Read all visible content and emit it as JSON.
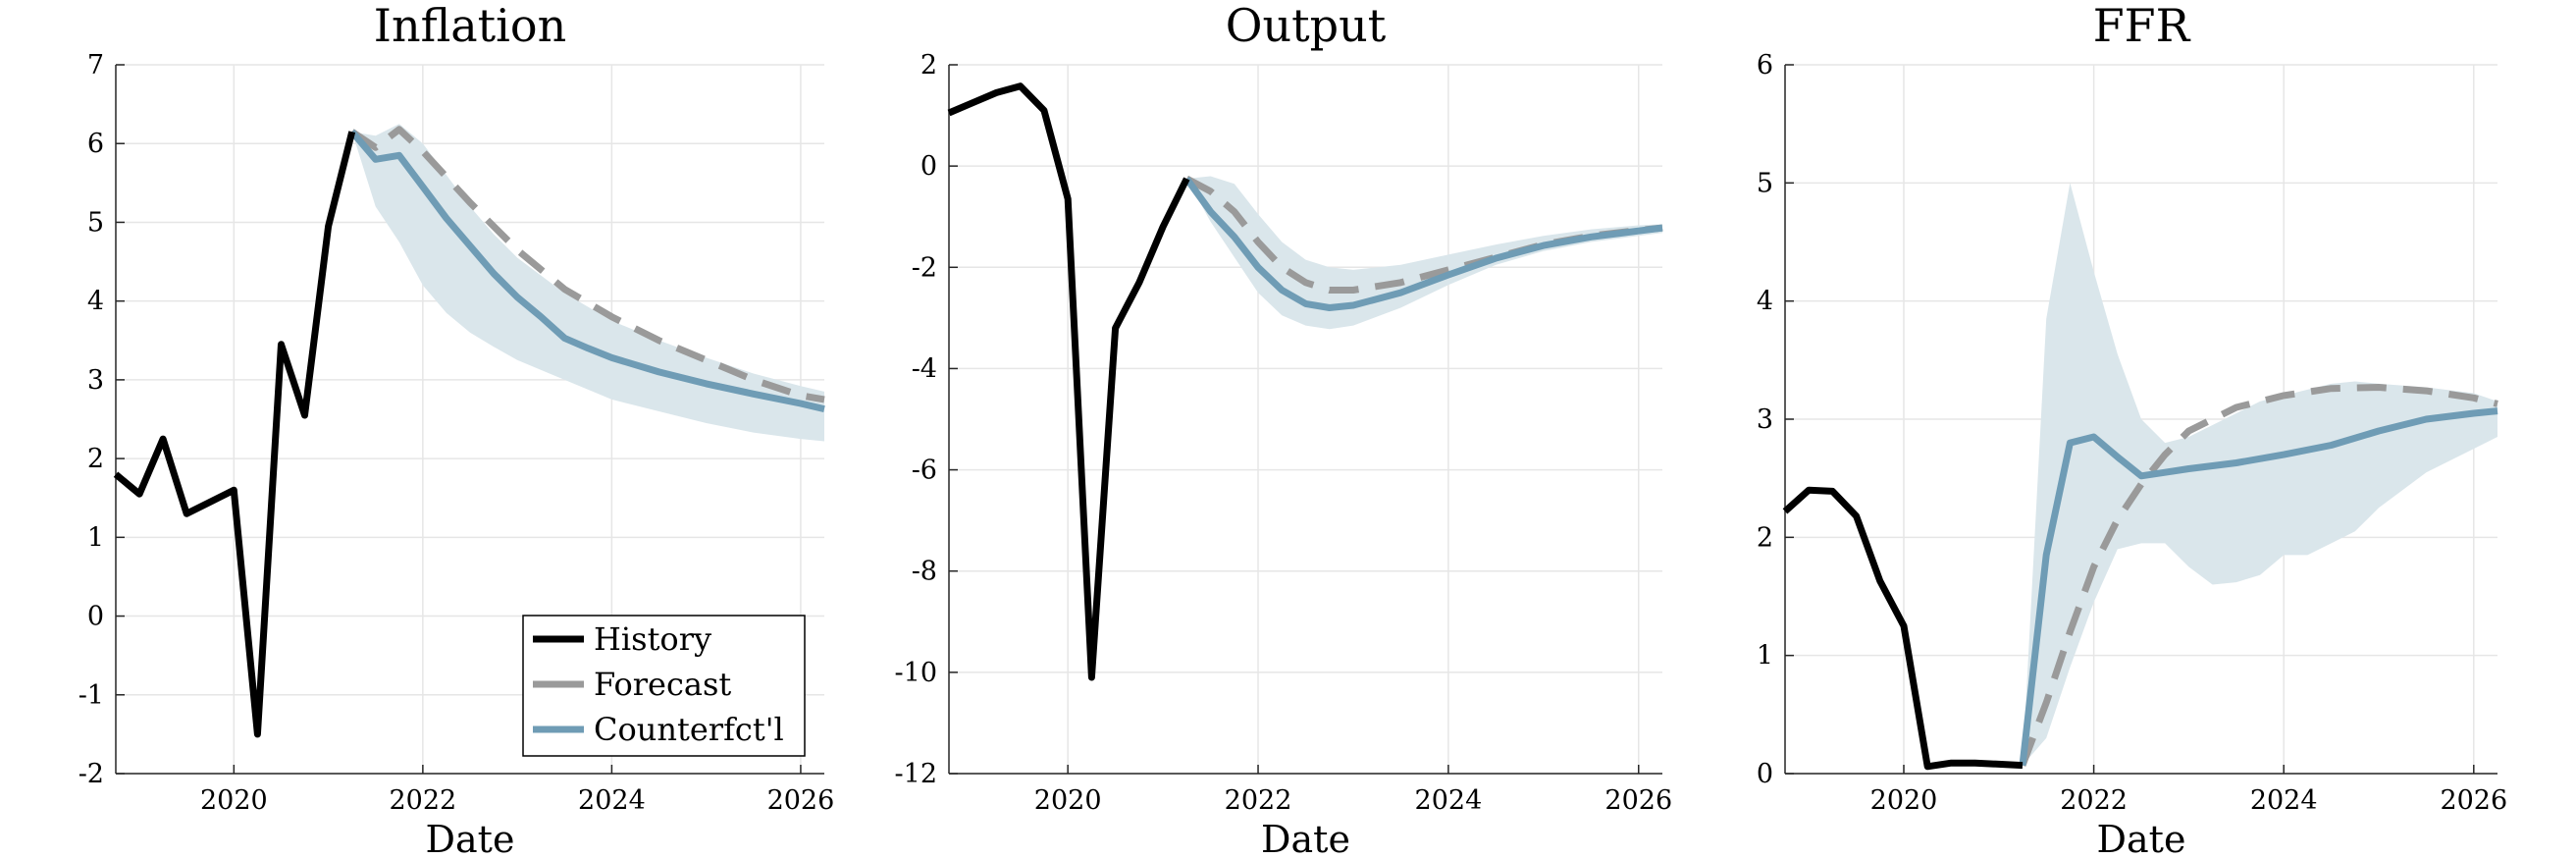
{
  "figure": {
    "series_styles": [
      {
        "key": "history",
        "color": "#000000",
        "dash": "solid"
      },
      {
        "key": "forecast",
        "color": "#9a9a9a",
        "dash": "dashed"
      },
      {
        "key": "counterfactual",
        "color": "#6f9cb5",
        "dash": "solid"
      }
    ],
    "band_color": "#dae6eb",
    "grid": true,
    "legend": {
      "panel": "Inflation",
      "placement": "bottom-right",
      "entries": [
        {
          "key": "history",
          "label": "History"
        },
        {
          "key": "forecast",
          "label": "Forecast"
        },
        {
          "key": "counterfactual",
          "label": "Counterfct'l"
        }
      ]
    }
  },
  "chart_data": [
    {
      "type": "line",
      "title": "Inflation",
      "xlabel": "Date",
      "ylabel": "",
      "xlim": [
        2018.75,
        2026.25
      ],
      "ylim": [
        -2,
        7
      ],
      "xticks": [
        2020,
        2022,
        2024,
        2026
      ],
      "yticks": [
        -2,
        -1,
        0,
        1,
        2,
        3,
        4,
        5,
        6,
        7
      ],
      "series": [
        {
          "key": "history",
          "name": "History",
          "x": [
            2018.75,
            2019.0,
            2019.25,
            2019.5,
            2019.75,
            2020.0,
            2020.25,
            2020.5,
            2020.75,
            2021.0,
            2021.25
          ],
          "y": [
            1.8,
            1.55,
            2.25,
            1.3,
            1.45,
            1.6,
            -1.5,
            3.45,
            2.55,
            4.95,
            6.15
          ]
        },
        {
          "key": "forecast",
          "name": "Forecast",
          "x": [
            2021.25,
            2021.5,
            2021.75,
            2022.0,
            2022.5,
            2023.0,
            2023.5,
            2024.0,
            2024.5,
            2025.0,
            2025.5,
            2026.0,
            2026.25
          ],
          "y": [
            6.15,
            5.95,
            6.18,
            5.9,
            5.25,
            4.65,
            4.15,
            3.8,
            3.5,
            3.25,
            3.0,
            2.8,
            2.75
          ]
        },
        {
          "key": "counterfactual",
          "name": "Counterfct'l",
          "x": [
            2021.25,
            2021.5,
            2021.75,
            2022.0,
            2022.25,
            2022.5,
            2022.75,
            2023.0,
            2023.25,
            2023.5,
            2023.75,
            2024.0,
            2024.5,
            2025.0,
            2025.5,
            2026.0,
            2026.25
          ],
          "y": [
            6.15,
            5.8,
            5.85,
            5.45,
            5.05,
            4.7,
            4.35,
            4.05,
            3.8,
            3.53,
            3.4,
            3.28,
            3.1,
            2.95,
            2.82,
            2.7,
            2.63
          ]
        }
      ],
      "band": {
        "x": [
          2021.25,
          2021.5,
          2021.75,
          2022.0,
          2022.25,
          2022.5,
          2022.75,
          2023.0,
          2023.5,
          2024.0,
          2024.5,
          2025.0,
          2025.5,
          2026.0,
          2026.25
        ],
        "lower": [
          6.15,
          5.2,
          4.75,
          4.2,
          3.85,
          3.6,
          3.42,
          3.25,
          3.0,
          2.75,
          2.6,
          2.45,
          2.33,
          2.25,
          2.22
        ],
        "upper": [
          6.15,
          6.1,
          6.25,
          6.0,
          5.6,
          5.2,
          4.85,
          4.55,
          4.1,
          3.75,
          3.5,
          3.28,
          3.08,
          2.92,
          2.85
        ]
      }
    },
    {
      "type": "line",
      "title": "Output",
      "xlabel": "Date",
      "ylabel": "",
      "xlim": [
        2018.75,
        2026.25
      ],
      "ylim": [
        -12,
        2
      ],
      "xticks": [
        2020,
        2022,
        2024,
        2026
      ],
      "yticks": [
        -12,
        -10,
        -8,
        -6,
        -4,
        -2,
        0,
        2
      ],
      "series": [
        {
          "key": "history",
          "name": "History",
          "x": [
            2018.75,
            2019.0,
            2019.25,
            2019.5,
            2019.75,
            2020.0,
            2020.25,
            2020.5,
            2020.75,
            2021.0,
            2021.25
          ],
          "y": [
            1.05,
            1.25,
            1.45,
            1.58,
            1.1,
            -0.65,
            -10.1,
            -3.2,
            -2.3,
            -1.2,
            -0.25
          ]
        },
        {
          "key": "forecast",
          "name": "Forecast",
          "x": [
            2021.25,
            2021.5,
            2021.75,
            2022.0,
            2022.25,
            2022.5,
            2022.75,
            2023.0,
            2023.5,
            2024.0,
            2024.5,
            2025.0,
            2025.5,
            2026.0,
            2026.25
          ],
          "y": [
            -0.25,
            -0.5,
            -0.9,
            -1.5,
            -2.0,
            -2.3,
            -2.45,
            -2.45,
            -2.3,
            -2.05,
            -1.8,
            -1.55,
            -1.38,
            -1.27,
            -1.22
          ]
        },
        {
          "key": "counterfactual",
          "name": "Counterfct'l",
          "x": [
            2021.25,
            2021.5,
            2021.75,
            2022.0,
            2022.25,
            2022.5,
            2022.75,
            2023.0,
            2023.5,
            2024.0,
            2024.5,
            2025.0,
            2025.5,
            2026.0,
            2026.25
          ],
          "y": [
            -0.25,
            -0.9,
            -1.4,
            -2.0,
            -2.45,
            -2.72,
            -2.8,
            -2.75,
            -2.5,
            -2.15,
            -1.82,
            -1.57,
            -1.4,
            -1.28,
            -1.22
          ]
        }
      ],
      "band": {
        "x": [
          2021.25,
          2021.5,
          2021.75,
          2022.0,
          2022.25,
          2022.5,
          2022.75,
          2023.0,
          2023.5,
          2024.0,
          2024.5,
          2025.0,
          2025.5,
          2026.0,
          2026.25
        ],
        "lower": [
          -0.25,
          -1.1,
          -1.8,
          -2.5,
          -2.95,
          -3.15,
          -3.22,
          -3.15,
          -2.8,
          -2.35,
          -1.95,
          -1.68,
          -1.5,
          -1.38,
          -1.32
        ],
        "upper": [
          -0.25,
          -0.2,
          -0.35,
          -0.95,
          -1.5,
          -1.85,
          -2.0,
          -2.05,
          -1.95,
          -1.75,
          -1.55,
          -1.38,
          -1.25,
          -1.17,
          -1.15
        ]
      }
    },
    {
      "type": "line",
      "title": "FFR",
      "xlabel": "Date",
      "ylabel": "",
      "xlim": [
        2018.75,
        2026.25
      ],
      "ylim": [
        0,
        6
      ],
      "xticks": [
        2020,
        2022,
        2024,
        2026
      ],
      "yticks": [
        0,
        1,
        2,
        3,
        4,
        5,
        6
      ],
      "series": [
        {
          "key": "history",
          "name": "History",
          "x": [
            2018.75,
            2019.0,
            2019.25,
            2019.5,
            2019.75,
            2020.0,
            2020.25,
            2020.5,
            2020.75,
            2021.0,
            2021.25
          ],
          "y": [
            2.22,
            2.4,
            2.39,
            2.18,
            1.63,
            1.25,
            0.06,
            0.09,
            0.09,
            0.08,
            0.07
          ]
        },
        {
          "key": "forecast",
          "name": "Forecast",
          "x": [
            2021.25,
            2021.5,
            2021.75,
            2022.0,
            2022.25,
            2022.5,
            2022.75,
            2023.0,
            2023.5,
            2024.0,
            2024.5,
            2025.0,
            2025.5,
            2026.0,
            2026.25
          ],
          "y": [
            0.07,
            0.6,
            1.2,
            1.75,
            2.15,
            2.45,
            2.7,
            2.9,
            3.1,
            3.2,
            3.26,
            3.27,
            3.24,
            3.18,
            3.13
          ]
        },
        {
          "key": "counterfactual",
          "name": "Counterfct'l",
          "x": [
            2021.25,
            2021.5,
            2021.75,
            2022.0,
            2022.25,
            2022.5,
            2022.75,
            2023.0,
            2023.5,
            2024.0,
            2024.5,
            2025.0,
            2025.5,
            2026.0,
            2026.25
          ],
          "y": [
            0.07,
            1.85,
            2.8,
            2.85,
            2.68,
            2.52,
            2.55,
            2.58,
            2.63,
            2.7,
            2.78,
            2.9,
            3.0,
            3.05,
            3.07
          ]
        }
      ],
      "band": {
        "x": [
          2021.25,
          2021.5,
          2021.75,
          2022.0,
          2022.25,
          2022.5,
          2022.75,
          2023.0,
          2023.25,
          2023.5,
          2023.75,
          2024.0,
          2024.25,
          2024.5,
          2024.75,
          2025.0,
          2025.5,
          2026.0,
          2026.25
        ],
        "lower": [
          0.07,
          0.3,
          0.9,
          1.45,
          1.9,
          1.95,
          1.95,
          1.75,
          1.6,
          1.62,
          1.68,
          1.85,
          1.85,
          1.95,
          2.05,
          2.25,
          2.55,
          2.75,
          2.85
        ],
        "upper": [
          0.07,
          3.85,
          5.0,
          4.25,
          3.55,
          3.0,
          2.8,
          2.85,
          2.95,
          3.05,
          3.15,
          3.2,
          3.25,
          3.3,
          3.32,
          3.3,
          3.27,
          3.22,
          3.15
        ]
      }
    }
  ]
}
